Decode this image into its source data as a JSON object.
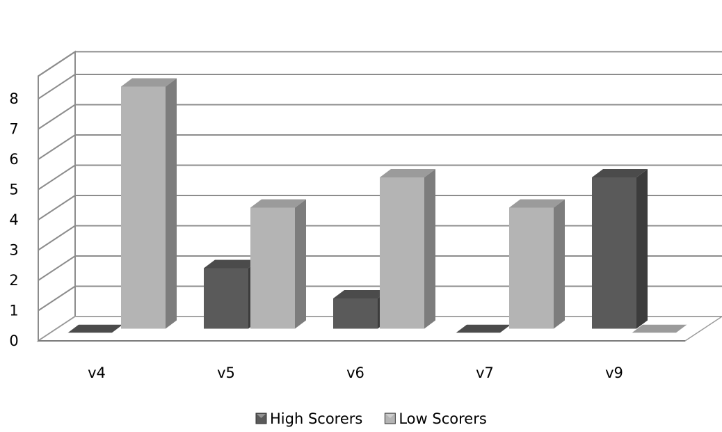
{
  "chart_data": {
    "type": "bar",
    "title": "",
    "xlabel": "",
    "ylabel": "",
    "categories": [
      "v4",
      "v5",
      "v6",
      "v7",
      "v9"
    ],
    "series": [
      {
        "name": "High Scorers",
        "values": [
          0,
          2,
          1,
          0,
          5
        ]
      },
      {
        "name": "Low Scorers",
        "values": [
          8,
          4,
          5,
          4,
          0
        ]
      }
    ],
    "ylim": [
      0,
      8
    ],
    "yticks": [
      "0",
      "1",
      "2",
      "3",
      "4",
      "5",
      "6",
      "7",
      "8"
    ],
    "grid": true,
    "three_d": true,
    "legend_position": "bottom",
    "colors": {
      "High Scorers": "#5a5a5a",
      "Low Scorers": "#b4b4b4"
    }
  }
}
